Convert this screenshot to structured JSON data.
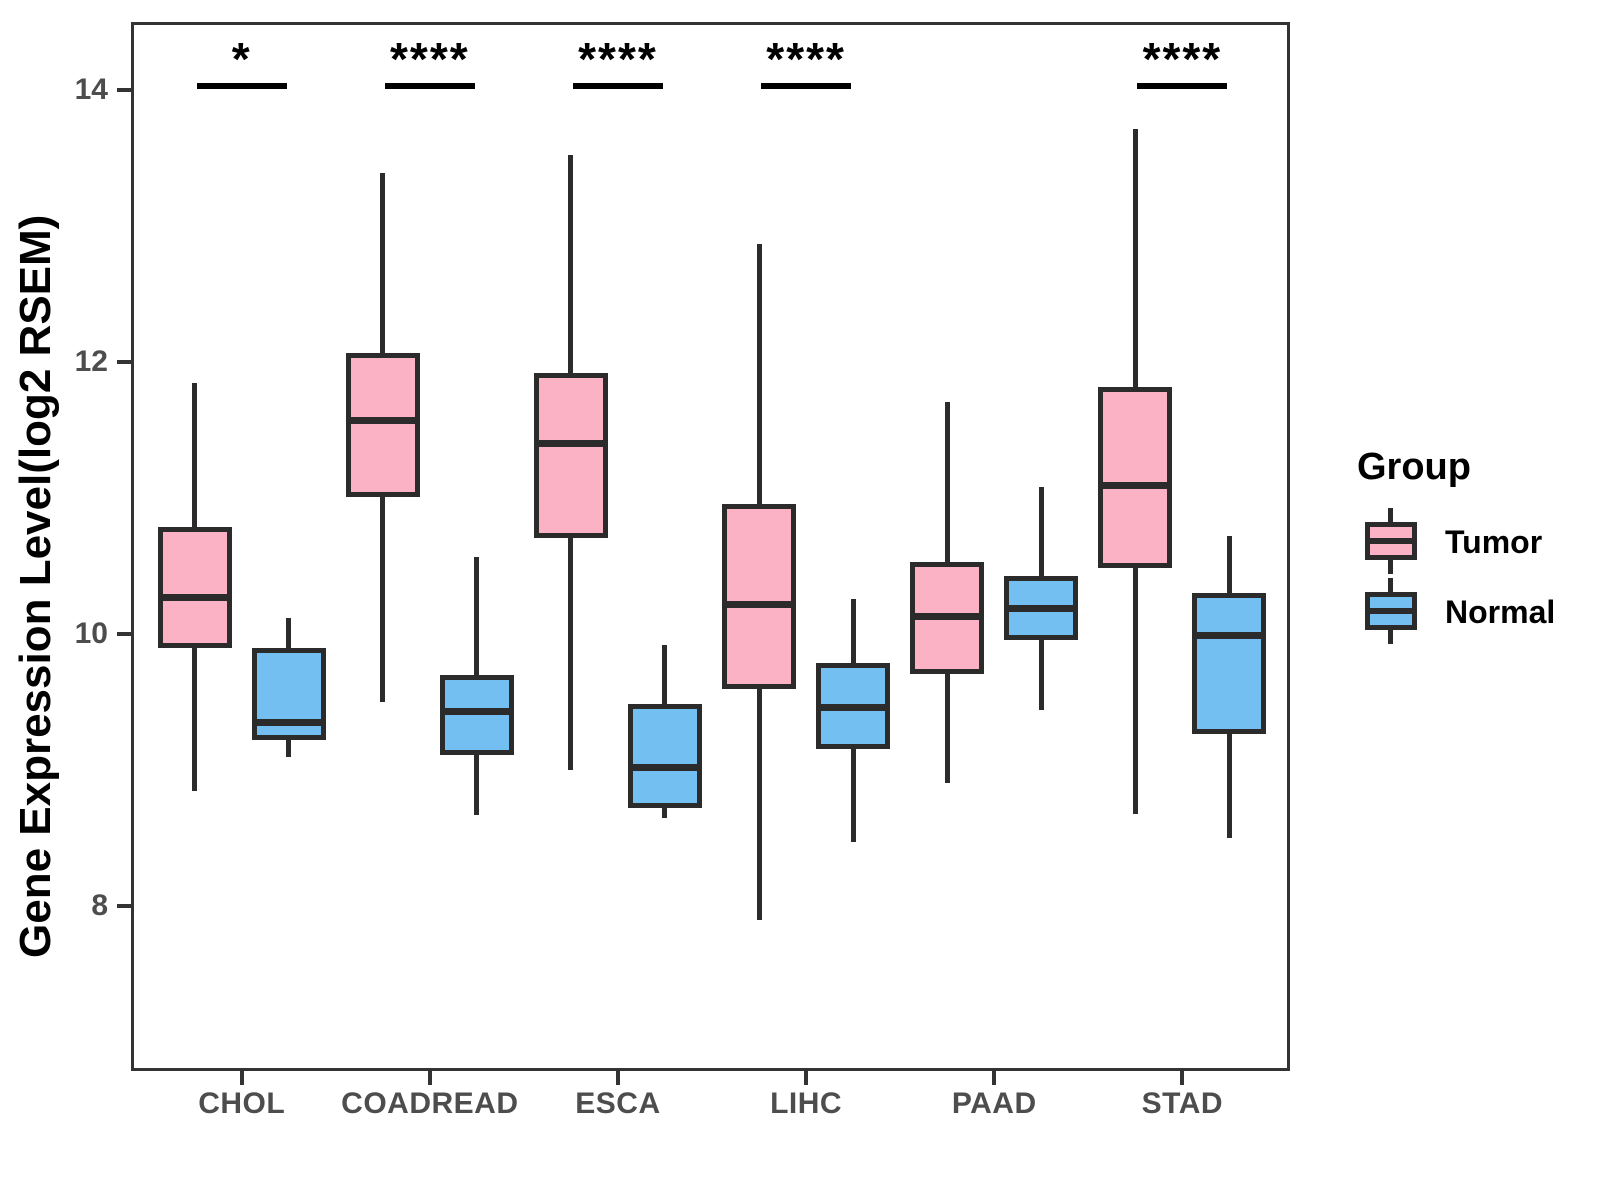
{
  "chart_data": {
    "type": "boxplot",
    "title": "",
    "xlabel": "",
    "ylabel": "Gene Expression Level(log2 RSEM)",
    "categories": [
      "CHOL",
      "COADREAD",
      "ESCA",
      "LIHC",
      "PAAD",
      "STAD"
    ],
    "y_ticks": [
      8,
      10,
      12,
      14
    ],
    "ylim": [
      6.79,
      14.5
    ],
    "grid": false,
    "legend": {
      "title": "Group",
      "position": "right",
      "entries": [
        "Tumor",
        "Normal"
      ]
    },
    "series": [
      {
        "name": "Tumor",
        "color": "#FAB2C4",
        "boxes": [
          {
            "category": "CHOL",
            "low": 8.85,
            "q1": 9.9,
            "median": 10.27,
            "q3": 10.79,
            "high": 11.85
          },
          {
            "category": "COADREAD",
            "low": 9.5,
            "q1": 11.01,
            "median": 11.57,
            "q3": 12.07,
            "high": 13.39
          },
          {
            "category": "ESCA",
            "low": 9.0,
            "q1": 10.71,
            "median": 11.4,
            "q3": 11.92,
            "high": 13.52
          },
          {
            "category": "LIHC",
            "low": 7.9,
            "q1": 9.6,
            "median": 10.22,
            "q3": 10.96,
            "high": 12.87
          },
          {
            "category": "PAAD",
            "low": 8.91,
            "q1": 9.71,
            "median": 10.13,
            "q3": 10.53,
            "high": 11.71
          },
          {
            "category": "STAD",
            "low": 8.68,
            "q1": 10.49,
            "median": 11.09,
            "q3": 11.82,
            "high": 13.71
          }
        ]
      },
      {
        "name": "Normal",
        "color": "#74BFF2",
        "boxes": [
          {
            "category": "CHOL",
            "low": 9.1,
            "q1": 9.22,
            "median": 9.35,
            "q3": 9.9,
            "high": 10.12
          },
          {
            "category": "COADREAD",
            "low": 8.67,
            "q1": 9.11,
            "median": 9.43,
            "q3": 9.7,
            "high": 10.57
          },
          {
            "category": "ESCA",
            "low": 8.65,
            "q1": 8.72,
            "median": 9.02,
            "q3": 9.49,
            "high": 9.92
          },
          {
            "category": "LIHC",
            "low": 8.47,
            "q1": 9.16,
            "median": 9.46,
            "q3": 9.79,
            "high": 10.26
          },
          {
            "category": "PAAD",
            "low": 9.44,
            "q1": 9.96,
            "median": 10.19,
            "q3": 10.43,
            "high": 11.08
          },
          {
            "category": "STAD",
            "low": 8.5,
            "q1": 9.27,
            "median": 9.99,
            "q3": 10.3,
            "high": 10.72
          }
        ]
      }
    ],
    "significance": [
      {
        "category": "CHOL",
        "stars": "*"
      },
      {
        "category": "COADREAD",
        "stars": "****"
      },
      {
        "category": "ESCA",
        "stars": "****"
      },
      {
        "category": "LIHC",
        "stars": "****"
      },
      {
        "category": "STAD",
        "stars": "****"
      }
    ],
    "colors": {
      "tumor_fill": "#FAB2C4",
      "normal_fill": "#74BFF2",
      "box_stroke": "#2B2B2B",
      "panel_border": "#333333",
      "axis_text": "#4D4D4D",
      "annotation": "#000000"
    }
  }
}
